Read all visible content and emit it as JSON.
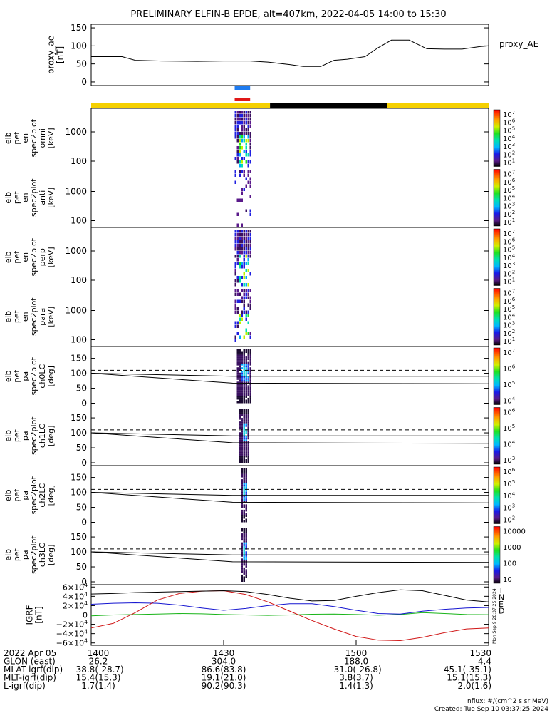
{
  "title": "PRELIMINARY ELFIN-B EPDE, alt=407km, 2022-04-05 14:00 to 15:30",
  "colors": {
    "axis": "#000000",
    "bar_blue": "#1e7bf0",
    "bar_red": "#e01818",
    "bar_yellow": "#f5d000",
    "bar_black": "#000000",
    "igrf_T": "#000000",
    "igrf_N": "#1515d0",
    "igrf_E": "#19b419",
    "igrf_D": "#d01515"
  },
  "proxy_ae": {
    "ylabel_lines": [
      "proxy_ae",
      "[nT]"
    ],
    "legend": "proxy_AE",
    "yticks": [
      "150",
      "100",
      "50",
      "0"
    ],
    "ylim": [
      -10,
      160
    ]
  },
  "spec_panels": [
    {
      "ylabel_lines": [
        "elb",
        "pef",
        "en",
        "spec2plot",
        "omni",
        "[keV]"
      ],
      "yticks": [
        "1000",
        "100"
      ],
      "cbar_ticks": [
        "10^7",
        "10^6",
        "10^5",
        "10^4",
        "10^3",
        "10^2",
        "10^1"
      ],
      "cbar_label": "nflux"
    },
    {
      "ylabel_lines": [
        "elb",
        "pef",
        "en",
        "spec2plot",
        "anti",
        "[keV]"
      ],
      "yticks": [
        "1000",
        "100"
      ],
      "cbar_ticks": [
        "10^7",
        "10^6",
        "10^5",
        "10^4",
        "10^3",
        "10^2",
        "10^1"
      ],
      "cbar_label": "nflux"
    },
    {
      "ylabel_lines": [
        "elb",
        "pef",
        "en",
        "spec2plot",
        "perp",
        "[keV]"
      ],
      "yticks": [
        "1000",
        "100"
      ],
      "cbar_ticks": [
        "10^7",
        "10^6",
        "10^5",
        "10^4",
        "10^3",
        "10^2",
        "10^1"
      ],
      "cbar_label": "nflux"
    },
    {
      "ylabel_lines": [
        "elb",
        "pef",
        "en",
        "spec2plot",
        "para",
        "[keV]"
      ],
      "yticks": [
        "1000",
        "100"
      ],
      "cbar_ticks": [
        "10^7",
        "10^6",
        "10^5",
        "10^4",
        "10^3",
        "10^2",
        "10^1"
      ],
      "cbar_label": "nflux"
    }
  ],
  "pa_panels": [
    {
      "ylabel_lines": [
        "elb",
        "pef",
        "pa",
        "spec2plot",
        "ch0LC",
        "[deg]"
      ],
      "yticks": [
        "150",
        "100",
        "50",
        "0"
      ],
      "cbar_ticks": [
        "10^7",
        "10^6",
        "10^5",
        "10^4"
      ],
      "cbar_label": "nflux"
    },
    {
      "ylabel_lines": [
        "elb",
        "pef",
        "pa",
        "spec2plot",
        "ch1LC",
        "[deg]"
      ],
      "yticks": [
        "150",
        "100",
        "50",
        "0"
      ],
      "cbar_ticks": [
        "10^6",
        "10^5",
        "10^4",
        "10^3"
      ],
      "cbar_label": "nflux"
    },
    {
      "ylabel_lines": [
        "elb",
        "pef",
        "pa",
        "spec2plot",
        "ch2LC",
        "[deg]"
      ],
      "yticks": [
        "150",
        "100",
        "50",
        "0"
      ],
      "cbar_ticks": [
        "10^6",
        "10^5",
        "10^4",
        "10^3",
        "10^2"
      ],
      "cbar_label": "nflux"
    },
    {
      "ylabel_lines": [
        "elb",
        "pef",
        "pa",
        "spec2plot",
        "ch3LC",
        "[deg]"
      ],
      "yticks": [
        "150",
        "100",
        "50",
        "0"
      ],
      "cbar_ticks": [
        "10000",
        "1000",
        "100",
        "10"
      ],
      "cbar_label": "nflux"
    }
  ],
  "igrf": {
    "ylabel_lines": [
      "IGRF",
      "[nT]"
    ],
    "yticks": [
      "6×10^4",
      "4×10^4",
      "2×10^4",
      "0",
      "−2×10^4",
      "−4×10^4",
      "−6×10^4"
    ],
    "legend": [
      "T",
      "N",
      "E",
      "D"
    ]
  },
  "side_note": "Mon Sep 9 20:37:25 2024",
  "time_axis": {
    "ticks": [
      "1400",
      "1430",
      "1500",
      "1530"
    ],
    "rows": [
      {
        "label": "2022 Apr 05",
        "values": [
          "1400",
          "1430",
          "1500",
          "1530"
        ]
      },
      {
        "label": "GLON (east)",
        "values": [
          "26.2",
          "304.0",
          "188.0",
          "4.4"
        ]
      },
      {
        "label": "MLAT-igrf(dip)",
        "values": [
          "-38.8(-28.7)",
          "86.6(83.8)",
          "-31.0(-26.8)",
          "-45.1(-35.1)"
        ]
      },
      {
        "label": "MLT-igrf(dip)",
        "values": [
          "15.4(15.3)",
          "19.1(21.0)",
          "3.8(3.7)",
          "15.1(15.3)"
        ]
      },
      {
        "label": "L-igrf(dip)",
        "values": [
          "1.7(1.4)",
          "90.2(90.3)",
          "1.4(1.3)",
          "2.0(1.6)"
        ]
      }
    ]
  },
  "footer": {
    "units": "nflux: #/(cm^2 s sr MeV)",
    "created": "Created: Tue Sep 10 03:37:25 2024"
  },
  "chart_data": {
    "type": "line",
    "x_unit": "UT minutes after 14:00",
    "xlim": [
      0,
      90
    ],
    "proxy_ae_series": {
      "x": [
        0,
        7,
        10,
        16,
        24,
        30,
        36,
        40,
        45,
        48,
        52,
        55,
        58,
        62,
        65,
        68,
        72,
        76,
        80,
        84,
        88,
        90
      ],
      "y": [
        70,
        70,
        60,
        58,
        57,
        58,
        58,
        55,
        48,
        43,
        43,
        60,
        63,
        70,
        95,
        116,
        116,
        92,
        91,
        91,
        98,
        100
      ]
    },
    "activity_interval": [
      32.5,
      36.0
    ],
    "science_zone_bar_minutes": [
      [
        0,
        40.5,
        "yellow"
      ],
      [
        40.5,
        67,
        "black"
      ],
      [
        67,
        90,
        "yellow"
      ]
    ],
    "pa_reference_lines": {
      "dashed_deg": 110,
      "upper_lc": {
        "x": [
          0,
          32,
          90
        ],
        "y": [
          100,
          90,
          90
        ]
      },
      "lower_lc": {
        "x": [
          0,
          32,
          90
        ],
        "y": [
          100,
          67,
          65
        ]
      }
    },
    "igrf_components": {
      "x": [
        0,
        5,
        10,
        15,
        20,
        25,
        30,
        35,
        40,
        45,
        50,
        55,
        60,
        65,
        70,
        75,
        80,
        85,
        90
      ],
      "T": [
        45000,
        46000,
        48000,
        49000,
        50000,
        51000,
        52000,
        50000,
        44000,
        36000,
        30000,
        31000,
        40000,
        48000,
        54000,
        52000,
        42000,
        32000,
        28000
      ],
      "N": [
        23000,
        25000,
        26000,
        25000,
        21000,
        15000,
        10000,
        14000,
        20000,
        24000,
        24000,
        18000,
        10000,
        3000,
        2000,
        8000,
        12000,
        15000,
        16000
      ],
      "E": [
        -2000,
        0,
        1000,
        2000,
        3000,
        2500,
        1000,
        0,
        -1000,
        0,
        1500,
        2000,
        1000,
        -500,
        1000,
        5000,
        3000,
        1000,
        500
      ],
      "D": [
        -28000,
        -18000,
        5000,
        32000,
        46000,
        51000,
        52000,
        44000,
        28000,
        8000,
        -12000,
        -30000,
        -46000,
        -54000,
        -55000,
        -48000,
        -38000,
        -30000,
        -28000
      ]
    },
    "igrf_ylim": [
      -65000,
      65000
    ]
  }
}
